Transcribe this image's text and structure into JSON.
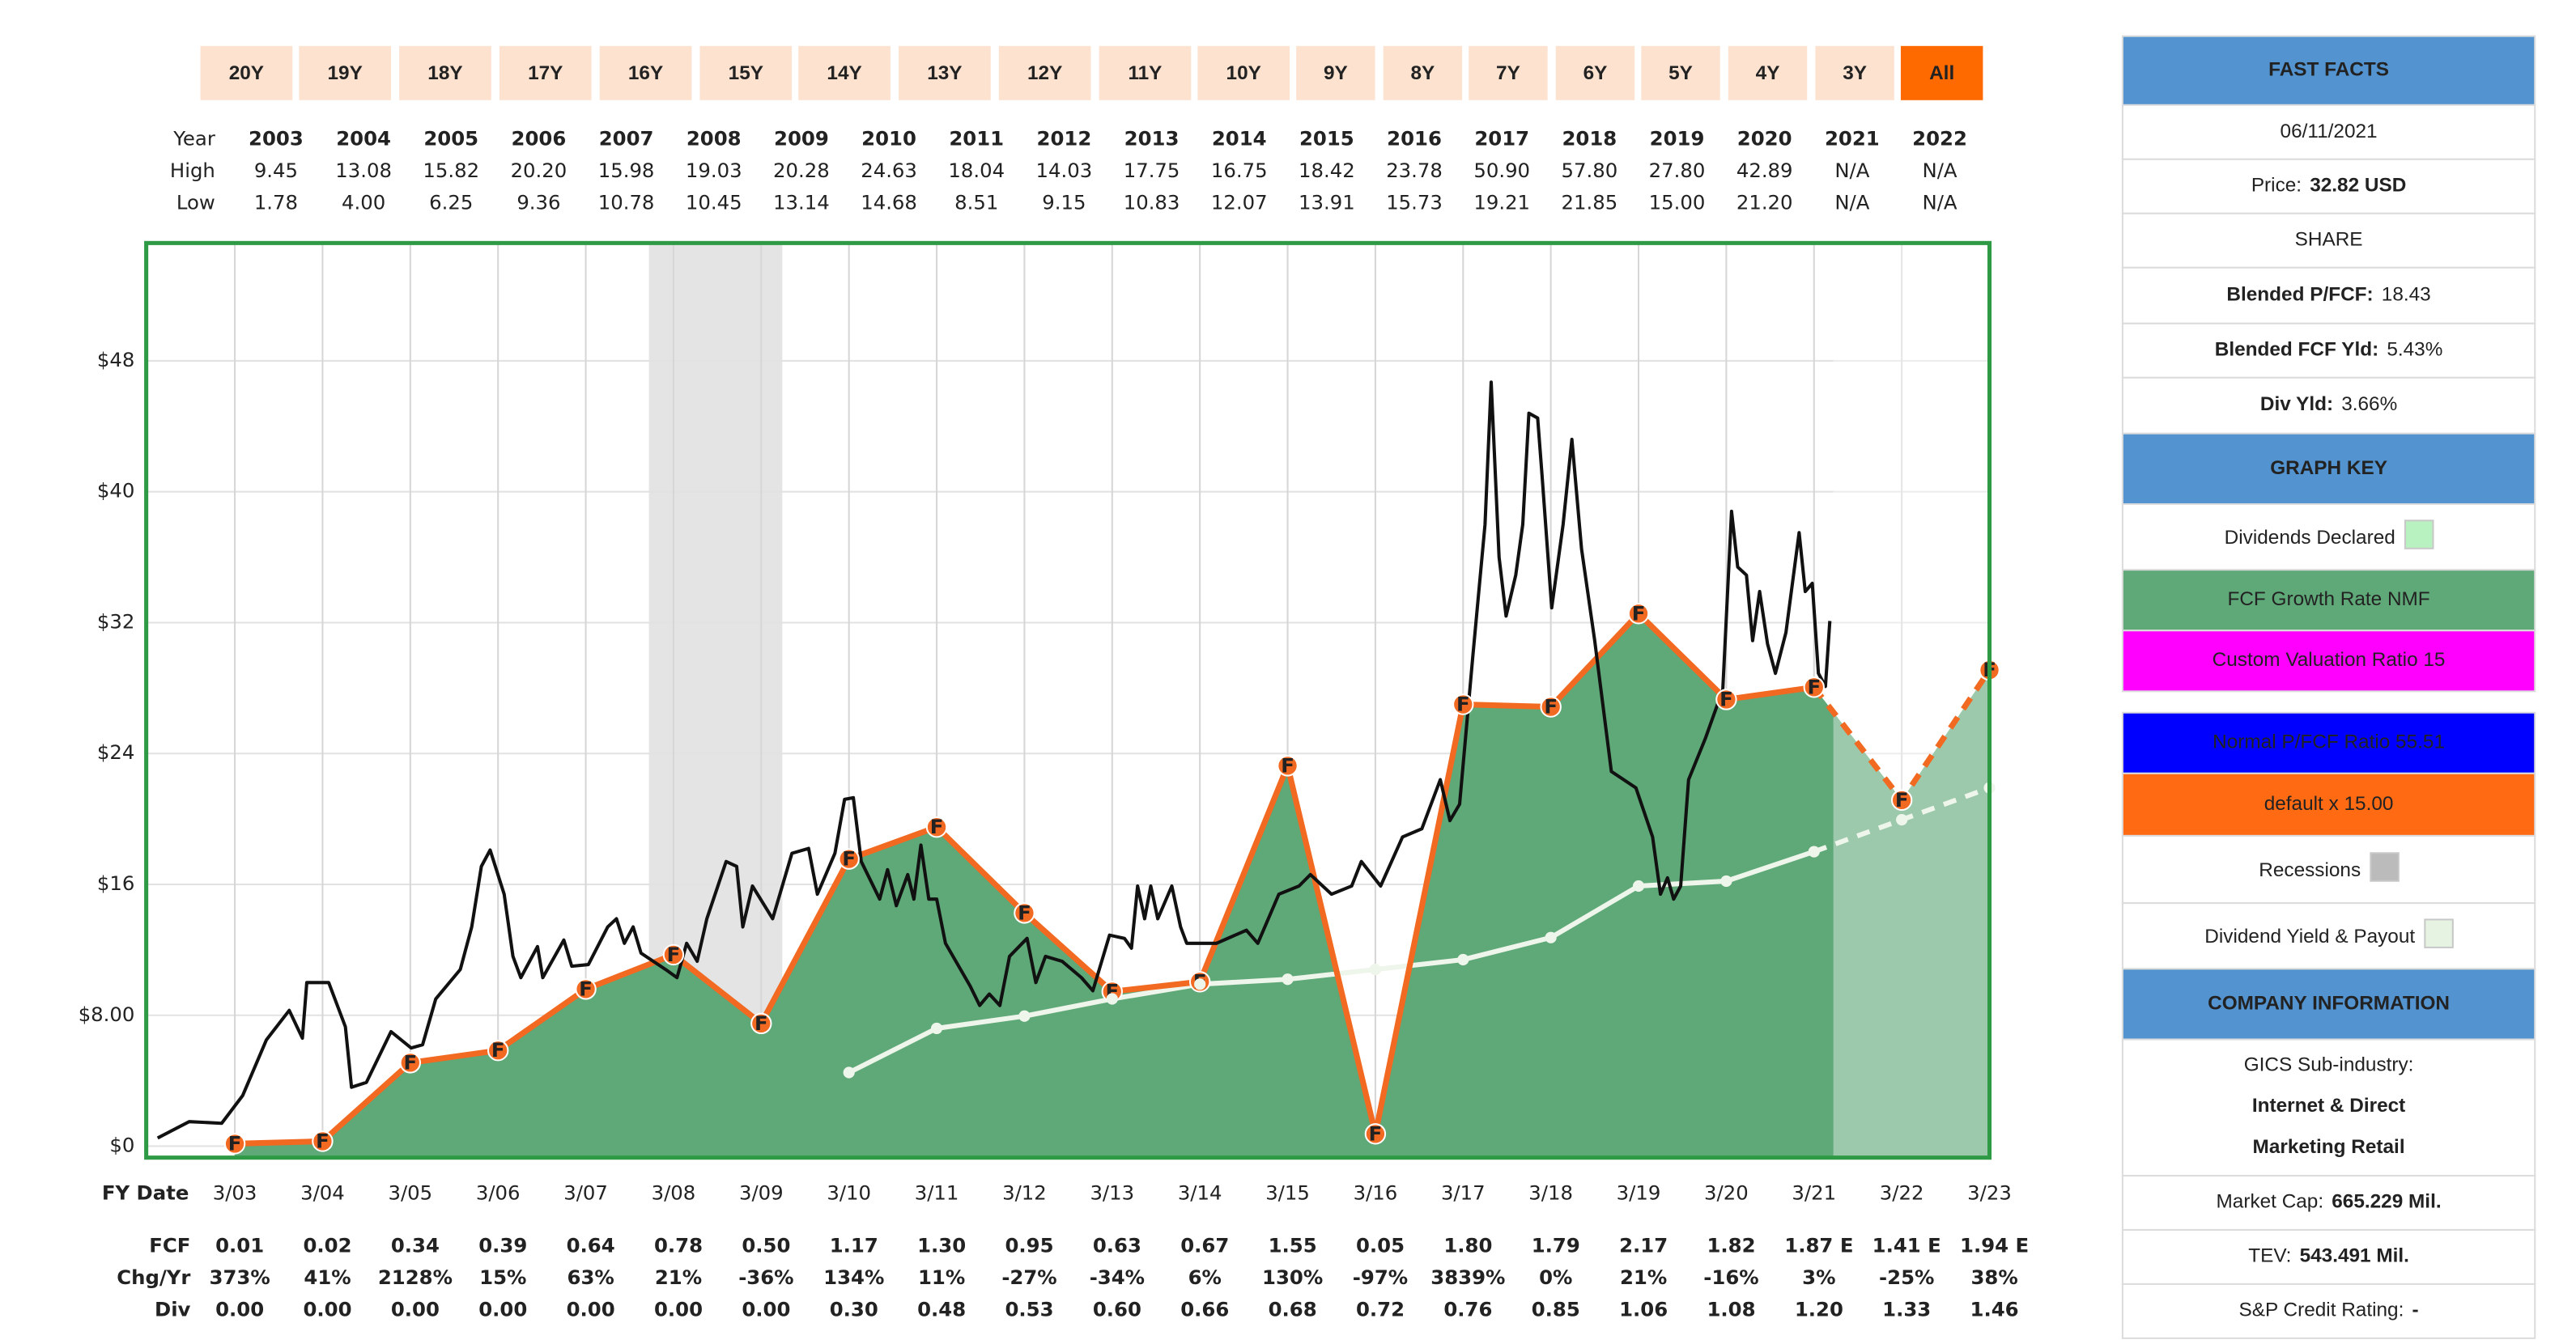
{
  "range_buttons": {
    "labels": [
      "20Y",
      "19Y",
      "18Y",
      "17Y",
      "16Y",
      "15Y",
      "14Y",
      "13Y",
      "12Y",
      "11Y",
      "10Y",
      "9Y",
      "8Y",
      "7Y",
      "6Y",
      "5Y",
      "4Y",
      "3Y",
      "All"
    ],
    "selected": 18,
    "color": "#fde2cf",
    "selected_color": "#ff6a00"
  },
  "year_table": {
    "row_labels": [
      "Year",
      "High",
      "Low"
    ],
    "years": [
      2003,
      2004,
      2005,
      2006,
      2007,
      2008,
      2009,
      2010,
      2011,
      2012,
      2013,
      2014,
      2015,
      2016,
      2017,
      2018,
      2019,
      2020,
      2021,
      2022
    ],
    "high": [
      "9.45",
      "13.08",
      "15.82",
      "20.20",
      "15.98",
      "19.03",
      "20.28",
      "24.63",
      "18.04",
      "14.03",
      "17.75",
      "16.75",
      "18.42",
      "23.78",
      "50.90",
      "57.80",
      "27.80",
      "42.89",
      "N/A",
      "N/A"
    ],
    "low": [
      "1.78",
      "4.00",
      "6.25",
      "9.36",
      "10.78",
      "10.45",
      "13.14",
      "14.68",
      "8.51",
      "9.15",
      "10.83",
      "12.07",
      "13.91",
      "15.73",
      "19.21",
      "21.85",
      "15.00",
      "21.20",
      "N/A",
      "N/A"
    ]
  },
  "chart_data": {
    "type": "line",
    "xlim": [
      2002.19,
      2023.2
    ],
    "ylim": [
      -0.7,
      55.2
    ],
    "xticks": [
      {
        "value": 2003.2,
        "label": "3/03"
      },
      {
        "value": 2004.2,
        "label": "3/04"
      },
      {
        "value": 2005.2,
        "label": "3/05"
      },
      {
        "value": 2006.2,
        "label": "3/06"
      },
      {
        "value": 2007.2,
        "label": "3/07"
      },
      {
        "value": 2008.2,
        "label": "3/08"
      },
      {
        "value": 2009.2,
        "label": "3/09"
      },
      {
        "value": 2010.2,
        "label": "3/10"
      },
      {
        "value": 2011.2,
        "label": "3/11"
      },
      {
        "value": 2012.2,
        "label": "3/12"
      },
      {
        "value": 2013.2,
        "label": "3/13"
      },
      {
        "value": 2014.2,
        "label": "3/14"
      },
      {
        "value": 2015.2,
        "label": "3/15"
      },
      {
        "value": 2016.2,
        "label": "3/16"
      },
      {
        "value": 2017.2,
        "label": "3/17"
      },
      {
        "value": 2018.2,
        "label": "3/18"
      },
      {
        "value": 2019.2,
        "label": "3/19"
      },
      {
        "value": 2020.2,
        "label": "3/20"
      },
      {
        "value": 2021.2,
        "label": "3/21"
      },
      {
        "value": 2022.2,
        "label": "3/22"
      },
      {
        "value": 2023.2,
        "label": "3/23"
      }
    ],
    "yticks": [
      {
        "value": 0,
        "label": "$0"
      },
      {
        "value": 8,
        "label": "$8.00"
      },
      {
        "value": 16,
        "label": "$16"
      },
      {
        "value": 24,
        "label": "$24"
      },
      {
        "value": 32,
        "label": "$32"
      },
      {
        "value": 40,
        "label": "$40"
      },
      {
        "value": 48,
        "label": "$48"
      }
    ],
    "grid": true,
    "frame_color": "#2e9a45",
    "recessions": [
      [
        2007.92,
        2009.44
      ]
    ],
    "recession_color": "#e4e4e4",
    "estimate_shade": [
      2021.42,
      2023.2
    ],
    "series": [
      {
        "color": "#f26a21",
        "fill": "#5fa878",
        "marker": "F",
        "x": [
          2003.2,
          2004.2,
          2005.2,
          2006.2,
          2007.2,
          2008.2,
          2009.2,
          2010.2,
          2011.2,
          2012.2,
          2013.2,
          2014.2,
          2015.2,
          2016.2,
          2017.2,
          2018.2,
          2019.2,
          2020.2,
          2021.2,
          2022.2,
          2023.2
        ],
        "values": [
          0.15,
          0.3,
          5.1,
          5.85,
          9.6,
          11.7,
          7.5,
          17.55,
          19.5,
          14.25,
          9.45,
          10.05,
          23.25,
          0.75,
          27,
          26.85,
          32.55,
          27.3,
          28.05,
          21.15,
          29.1
        ]
      },
      {
        "color": "#eef5ea",
        "dots": true,
        "x": [
          2003.2,
          2004.2,
          2005.2,
          2006.2,
          2007.2,
          2008.2,
          2009.2,
          2010.2,
          2011.2,
          2012.2,
          2013.2,
          2014.2,
          2015.2,
          2016.2,
          2017.2,
          2018.2,
          2019.2,
          2020.2,
          2021.2,
          2022.2,
          2023.2
        ],
        "values": [
          null,
          null,
          null,
          null,
          null,
          null,
          null,
          4.5,
          7.2,
          7.95,
          9,
          9.9,
          10.2,
          10.8,
          11.4,
          12.75,
          15.9,
          16.2,
          18,
          19.95,
          21.9
        ]
      },
      {
        "color": "#111111",
        "x": [
          2002.32,
          2002.68,
          2003.05,
          2003.29,
          2003.56,
          2003.82,
          2003.97,
          2004.02,
          2004.27,
          2004.46,
          2004.53,
          2004.7,
          2004.98,
          2005.21,
          2005.34,
          2005.49,
          2005.77,
          2005.9,
          2006.01,
          2006.11,
          2006.27,
          2006.37,
          2006.46,
          2006.65,
          2006.71,
          2006.95,
          2007.04,
          2007.23,
          2007.45,
          2007.55,
          2007.64,
          2007.74,
          2007.83,
          2008.11,
          2008.24,
          2008.35,
          2008.47,
          2008.58,
          2008.8,
          2008.92,
          2008.99,
          2009.1,
          2009.33,
          2009.55,
          2009.74,
          2009.84,
          2010.04,
          2010.15,
          2010.25,
          2010.34,
          2010.55,
          2010.64,
          2010.74,
          2010.87,
          2010.94,
          2011.02,
          2011.11,
          2011.2,
          2011.3,
          2011.58,
          2011.69,
          2011.8,
          2011.92,
          2012.03,
          2012.23,
          2012.33,
          2012.44,
          2012.63,
          2012.85,
          2012.98,
          2013.17,
          2013.34,
          2013.42,
          2013.49,
          2013.57,
          2013.64,
          2013.72,
          2013.88,
          2013.98,
          2014.05,
          2014.39,
          2014.73,
          2014.86,
          2015.1,
          2015.33,
          2015.46,
          2015.7,
          2015.93,
          2016.04,
          2016.26,
          2016.51,
          2016.73,
          2016.94,
          2017.05,
          2017.16,
          2017.31,
          2017.45,
          2017.52,
          2017.61,
          2017.69,
          2017.8,
          2017.88,
          2017.95,
          2018.05,
          2018.1,
          2018.21,
          2018.34,
          2018.44,
          2018.55,
          2018.7,
          2018.89,
          2019.17,
          2019.36,
          2019.45,
          2019.53,
          2019.6,
          2019.68,
          2019.77,
          2019.96,
          2020.16,
          2020.26,
          2020.33,
          2020.43,
          2020.5,
          2020.58,
          2020.67,
          2020.76,
          2020.88,
          2021.03,
          2021.1,
          2021.18,
          2021.25,
          2021.33,
          2021.38
        ],
        "values": [
          0.5,
          1.5,
          1.4,
          3.1,
          6.5,
          8.3,
          6.6,
          10.0,
          10.0,
          7.3,
          3.6,
          3.9,
          7.0,
          6.0,
          6.2,
          9.0,
          10.8,
          13.4,
          17.1,
          18.1,
          15.4,
          11.6,
          10.3,
          12.2,
          10.3,
          12.6,
          11.0,
          11.1,
          13.4,
          13.9,
          12.4,
          13.4,
          11.8,
          10.8,
          10.3,
          12.4,
          11.3,
          13.9,
          17.4,
          17.1,
          13.4,
          15.9,
          13.9,
          17.9,
          18.2,
          15.4,
          17.9,
          21.2,
          21.3,
          17.4,
          15.1,
          16.9,
          14.7,
          16.6,
          15.1,
          18.4,
          15.1,
          15.1,
          12.4,
          9.8,
          8.6,
          9.3,
          8.6,
          11.6,
          12.7,
          10.0,
          11.6,
          11.3,
          10.3,
          9.5,
          12.9,
          12.7,
          12.1,
          15.9,
          13.9,
          15.9,
          13.9,
          15.9,
          13.4,
          12.4,
          12.4,
          13.2,
          12.4,
          15.4,
          15.9,
          16.6,
          15.4,
          15.9,
          17.4,
          15.9,
          18.9,
          19.4,
          22.4,
          19.9,
          20.9,
          29.9,
          38.0,
          46.7,
          36.0,
          32.4,
          34.9,
          38.0,
          44.8,
          44.5,
          41.0,
          32.9,
          38.0,
          43.2,
          36.5,
          30.9,
          22.9,
          21.9,
          18.9,
          15.4,
          16.4,
          15.1,
          15.9,
          22.4,
          24.9,
          27.9,
          38.8,
          35.4,
          34.9,
          30.9,
          33.9,
          30.7,
          28.9,
          31.4,
          37.5,
          33.9,
          34.4,
          28.9,
          28.1,
          32.1
        ]
      }
    ]
  },
  "fy_table": {
    "title": "FY Date",
    "row_labels": [
      "FCF",
      "Chg/Yr",
      "Div"
    ],
    "fcf": [
      "0.01",
      "0.02",
      "0.34",
      "0.39",
      "0.64",
      "0.78",
      "0.50",
      "1.17",
      "1.30",
      "0.95",
      "0.63",
      "0.67",
      "1.55",
      "0.05",
      "1.80",
      "1.79",
      "2.17",
      "1.82",
      "1.87 E",
      "1.41 E",
      "1.94 E"
    ],
    "chg": [
      "373%",
      "41%",
      "2128%",
      "15%",
      "63%",
      "21%",
      "-36%",
      "134%",
      "11%",
      "-27%",
      "-34%",
      "6%",
      "130%",
      "-97%",
      "3839%",
      "0%",
      "21%",
      "-16%",
      "3%",
      "-25%",
      "38%"
    ],
    "div": [
      "0.00",
      "0.00",
      "0.00",
      "0.00",
      "0.00",
      "0.00",
      "0.00",
      "0.30",
      "0.48",
      "0.53",
      "0.60",
      "0.66",
      "0.68",
      "0.72",
      "0.76",
      "0.85",
      "1.06",
      "1.08",
      "1.20",
      "1.33",
      "1.46"
    ]
  },
  "sidebar": {
    "header_color": "#5393d0",
    "fast_facts": {
      "title": "FAST FACTS",
      "date": "06/11/2021",
      "price_label": "Price:",
      "price": "32.82 USD",
      "share": "SHARE",
      "stats": [
        {
          "label": "Blended P/FCF:",
          "value": "18.43"
        },
        {
          "label": "Blended FCF Yld:",
          "value": "5.43%"
        },
        {
          "label": "Div Yld:",
          "value": "3.66%"
        }
      ]
    },
    "graph_key": {
      "title": "GRAPH KEY",
      "items": [
        {
          "label": "Dividends Declared",
          "swatch": "#b8f2c0"
        },
        {
          "label": "FCF Growth Rate NMF",
          "background": "#5fa878"
        },
        {
          "label": "Custom Valuation Ratio 15",
          "background": "#ff00ff"
        },
        {
          "label": "Normal P/FCF Ratio 55.51",
          "background": "#0000ff"
        },
        {
          "label": "default x 15.00",
          "background": "#ff6a13"
        },
        {
          "label": "Recessions",
          "swatch": "#bbbbbb"
        },
        {
          "label": "Dividend Yield & Payout",
          "swatch": "#e6f3e2"
        }
      ]
    },
    "company": {
      "title": "COMPANY INFORMATION",
      "industry_label": "GICS Sub-industry:",
      "industry": [
        "Internet & Direct",
        "Marketing Retail"
      ],
      "stats": [
        {
          "label": "Market Cap:",
          "value": "665.229 Mil."
        },
        {
          "label": "TEV:",
          "value": "543.491 Mil."
        },
        {
          "label": "S&P Credit Rating:",
          "value": "-"
        }
      ]
    }
  }
}
